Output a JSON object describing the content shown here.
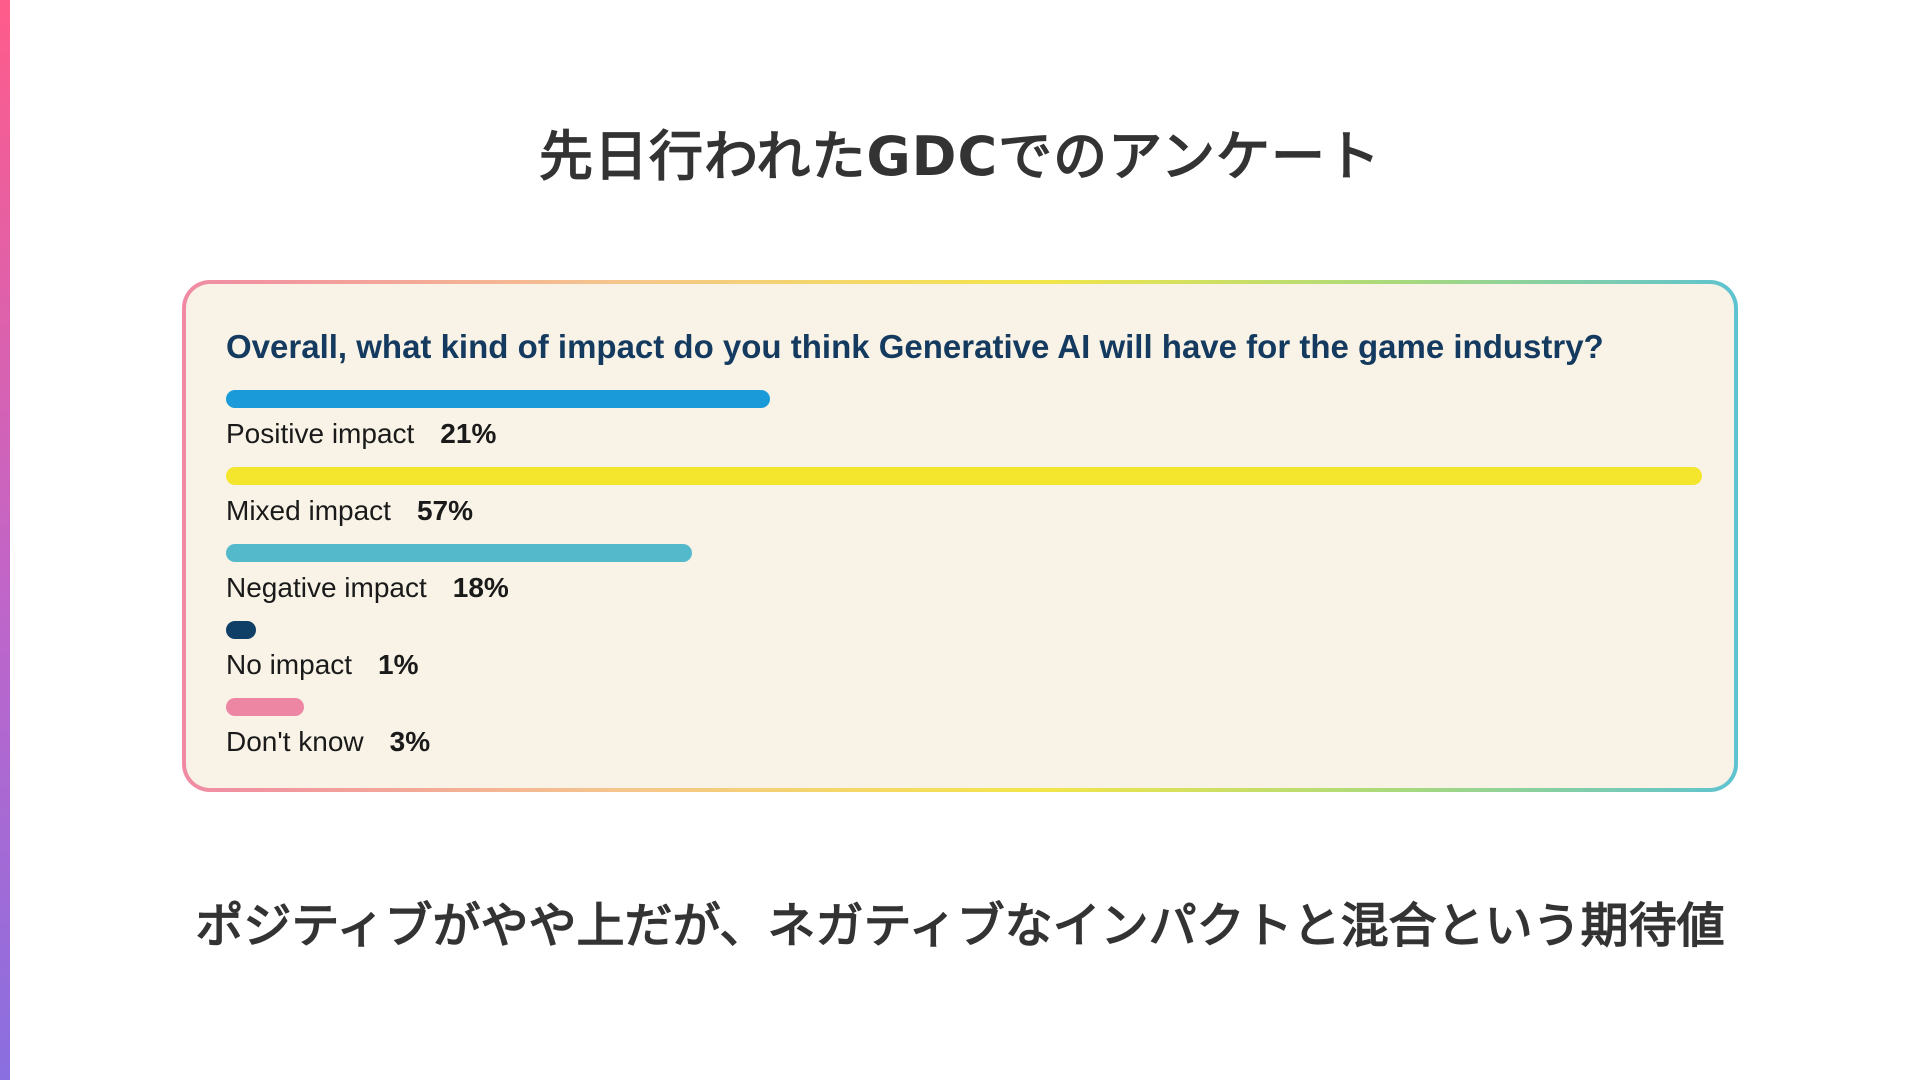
{
  "slide": {
    "title": "先日行われたGDCでのアンケート",
    "conclusion": "ポジティブがやや上だが、ネガティブなインパクトと混合という期待値"
  },
  "colors": {
    "positive": "#1a9ad9",
    "mixed": "#f3e62c",
    "negative": "#55b9cc",
    "none": "#0f3e66",
    "dont_know": "#ec86a2",
    "question_text": "#143a5f",
    "card_background": "#f8f3e6"
  },
  "chart_data": {
    "type": "bar",
    "orientation": "horizontal",
    "title": "Overall, what kind of impact do you think Generative AI will have for the game industry?",
    "categories": [
      "Positive impact",
      "Mixed impact",
      "Negative impact",
      "No impact",
      "Don't know"
    ],
    "values": [
      21,
      57,
      18,
      1,
      3
    ],
    "labels": [
      "21%",
      "57%",
      "18%",
      "1%",
      "3%"
    ],
    "unit": "%",
    "xlim": [
      0,
      57
    ],
    "grid": false,
    "legend": "none"
  }
}
